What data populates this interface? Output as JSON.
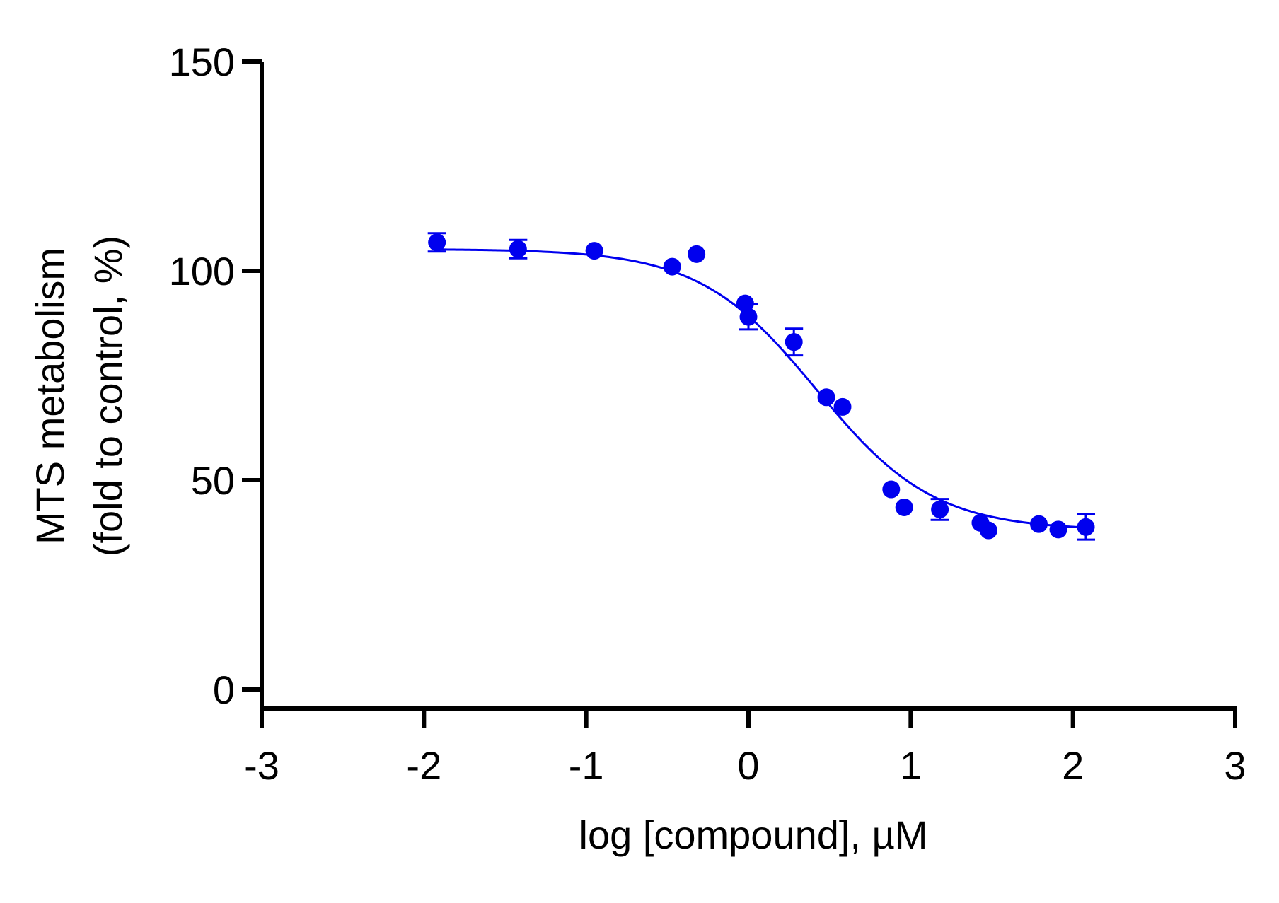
{
  "chart_data": {
    "type": "scatter",
    "title": "",
    "xlabel": "log [compound], µM",
    "ylabel": [
      "MTS metabolism",
      "(fold to control, %)"
    ],
    "xlim": [
      -3,
      3
    ],
    "ylim": [
      0,
      150
    ],
    "xticks": [
      "-3",
      "-2",
      "-1",
      "0",
      "1",
      "2",
      "3"
    ],
    "yticks": [
      "0",
      "50",
      "100",
      "150"
    ],
    "xtick_values": [
      -3,
      -2,
      -1,
      0,
      1,
      2,
      3
    ],
    "ytick_values": [
      0,
      50,
      100,
      150
    ],
    "grid": false,
    "color": "#0000ee",
    "points": [
      {
        "x": -1.92,
        "y": 106.8,
        "err": 2.2
      },
      {
        "x": -1.42,
        "y": 105.2,
        "err": 2.2
      },
      {
        "x": -0.95,
        "y": 104.8,
        "err": 0
      },
      {
        "x": -0.47,
        "y": 101.0,
        "err": 0
      },
      {
        "x": -0.32,
        "y": 104.0,
        "err": 0
      },
      {
        "x": -0.02,
        "y": 92.2,
        "err": 0
      },
      {
        "x": 0.0,
        "y": 89.0,
        "err": 3.0
      },
      {
        "x": 0.28,
        "y": 83.0,
        "err": 3.2
      },
      {
        "x": 0.48,
        "y": 69.8,
        "err": 0
      },
      {
        "x": 0.58,
        "y": 67.5,
        "err": 0
      },
      {
        "x": 0.88,
        "y": 47.8,
        "err": 0
      },
      {
        "x": 0.96,
        "y": 43.5,
        "err": 0
      },
      {
        "x": 1.18,
        "y": 43.0,
        "err": 2.5
      },
      {
        "x": 1.43,
        "y": 39.8,
        "err": 0
      },
      {
        "x": 1.48,
        "y": 38.0,
        "err": 0
      },
      {
        "x": 1.79,
        "y": 39.5,
        "err": 0
      },
      {
        "x": 1.91,
        "y": 38.2,
        "err": 0
      },
      {
        "x": 2.08,
        "y": 38.8,
        "err": 3.0
      }
    ],
    "fit": {
      "top": 105.2,
      "bottom": 38.0,
      "log_ec50": 0.42,
      "hill": -1.2,
      "x_range": [
        -1.92,
        2.08
      ]
    }
  }
}
